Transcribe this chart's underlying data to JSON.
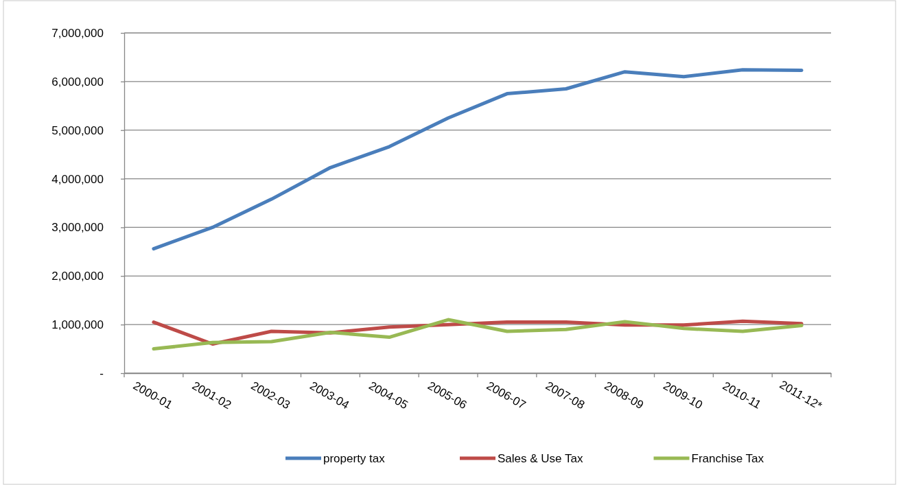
{
  "chart_data": {
    "type": "line",
    "categories": [
      "2000-01",
      "2001-02",
      "2002-03",
      "2003-04",
      "2004-05",
      "2005-06",
      "2006-07",
      "2007-08",
      "2008-09",
      "2009-10",
      "2010-11",
      "2011-12*"
    ],
    "series": [
      {
        "name": "property tax",
        "color": "#4a7ebb",
        "values": [
          2560000,
          3000000,
          3580000,
          4230000,
          4660000,
          5250000,
          5750000,
          5850000,
          6200000,
          6100000,
          6240000,
          6230000
        ]
      },
      {
        "name": "Sales & Use Tax",
        "color": "#be4b48",
        "values": [
          1050000,
          600000,
          860000,
          830000,
          950000,
          1000000,
          1050000,
          1050000,
          990000,
          990000,
          1070000,
          1020000
        ]
      },
      {
        "name": "Franchise Tax",
        "color": "#98b954",
        "values": [
          500000,
          630000,
          650000,
          840000,
          740000,
          1100000,
          860000,
          900000,
          1060000,
          920000,
          860000,
          980000
        ]
      }
    ],
    "ylim": [
      0,
      7000000
    ],
    "yticks": [
      {
        "value": 0,
        "label": "-"
      },
      {
        "value": 1000000,
        "label": "1,000,000"
      },
      {
        "value": 2000000,
        "label": "2,000,000"
      },
      {
        "value": 3000000,
        "label": "3,000,000"
      },
      {
        "value": 4000000,
        "label": "4,000,000"
      },
      {
        "value": 5000000,
        "label": "5,000,000"
      },
      {
        "value": 6000000,
        "label": "6,000,000"
      },
      {
        "value": 7000000,
        "label": "7,000,000"
      }
    ],
    "grid": "y",
    "legend": "bottom",
    "marker": "none",
    "line_style": "solid"
  }
}
